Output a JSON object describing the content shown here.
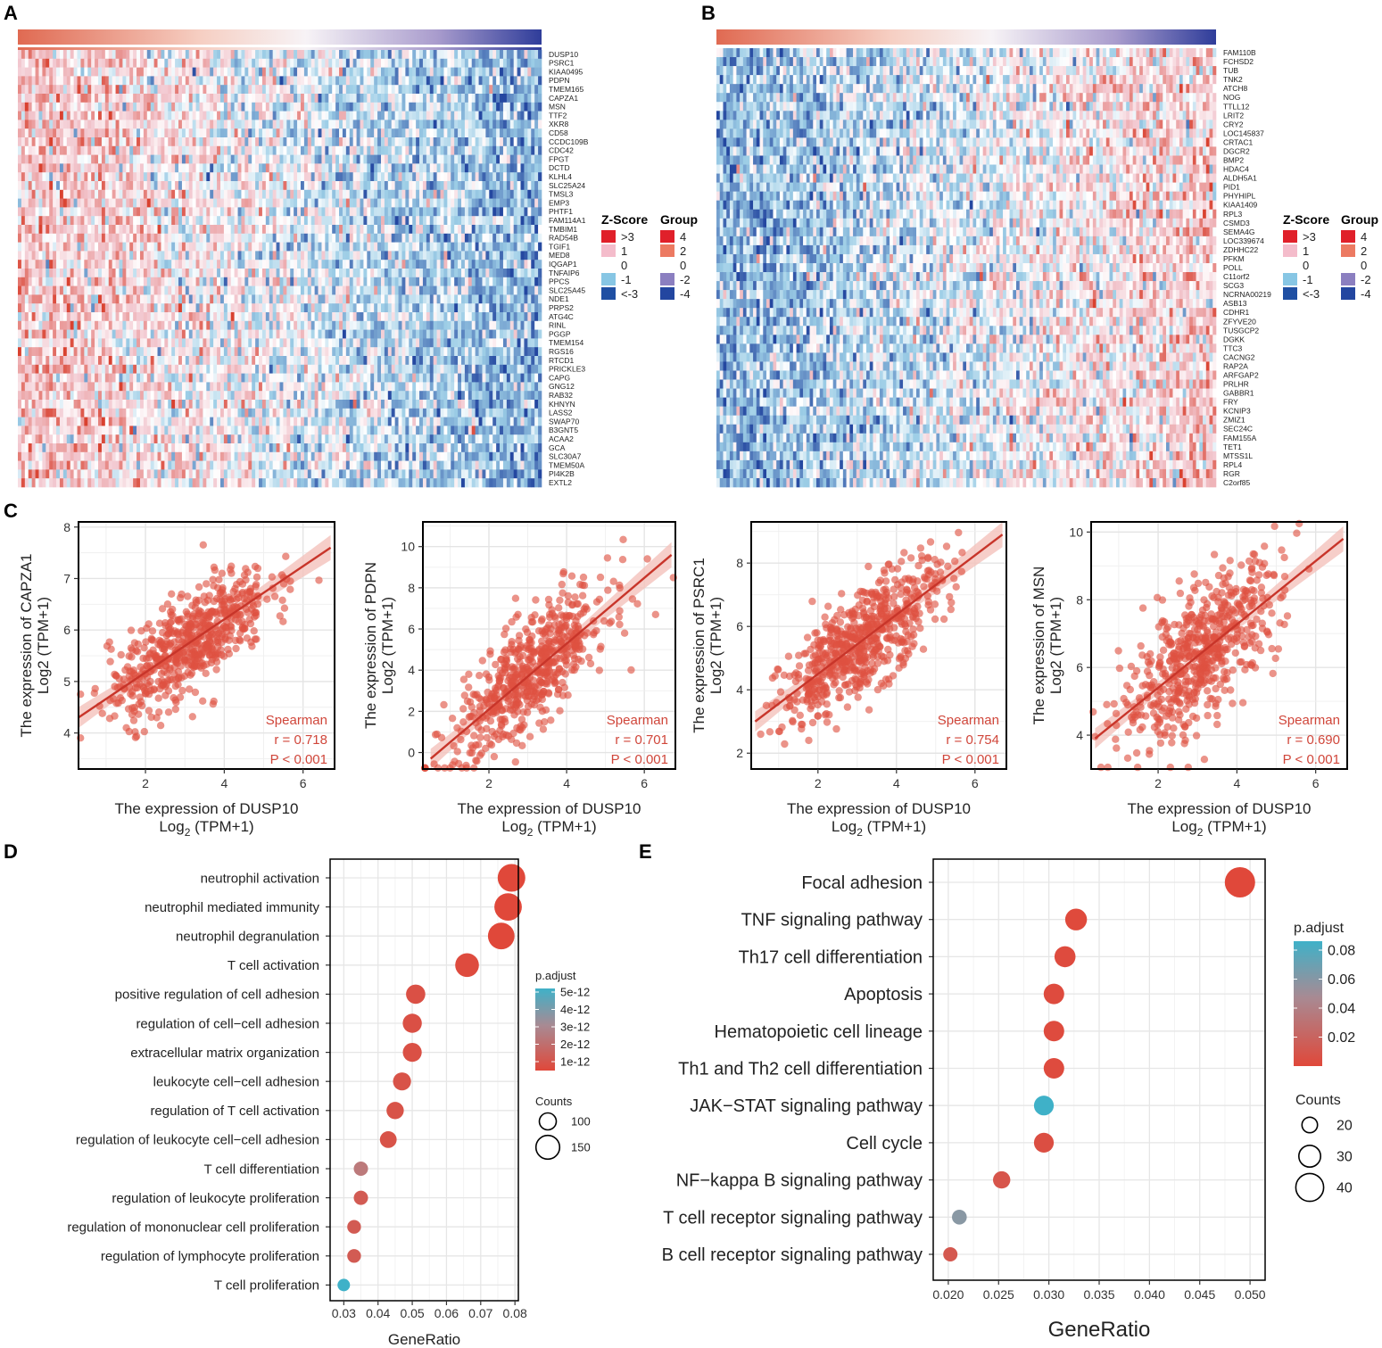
{
  "panels": {
    "A": "A",
    "B": "B",
    "C": "C",
    "D": "D",
    "E": "E"
  },
  "colors": {
    "red": "#d9412f",
    "pink": "#f2c7cf",
    "white": "#ffffff",
    "lightblue": "#86c3e0",
    "darkblue": "#2447a0",
    "point": "#dc4c3a",
    "line": "#c8352a",
    "band": "#f3b9b2",
    "purple": "#8c7fbf",
    "salmon": "#ea7b5e"
  },
  "heatmapA": {
    "genes": [
      "DUSP10",
      "PSRC1",
      "KIAA0495",
      "PDPN",
      "TMEM165",
      "CAPZA1",
      "MSN",
      "TTF2",
      "XKR8",
      "CD58",
      "CCDC109B",
      "CDC42",
      "FPGT",
      "DCTD",
      "KLHL4",
      "SLC25A24",
      "TMSL3",
      "EMP3",
      "PHTF1",
      "FAM114A1",
      "TMBIM1",
      "RAD54B",
      "TGIF1",
      "MED8",
      "IQGAP1",
      "TNFAIP6",
      "PPCS",
      "SLC25A45",
      "NDE1",
      "PRPS2",
      "ATG4C",
      "RINL",
      "PGGP",
      "TMEM154",
      "RGS16",
      "RTCD1",
      "PRICKLE3",
      "CAPG",
      "GNG12",
      "RAB32",
      "KHNYN",
      "LASS2",
      "SWAP70",
      "B3GNT5",
      "ACAA2",
      "GCA",
      "SLC30A7",
      "TMEM50A",
      "PI4K2B",
      "EXTL2"
    ],
    "direction": "red-to-blue"
  },
  "heatmapB": {
    "genes": [
      "FAM110B",
      "FCHSD2",
      "TUB",
      "TNK2",
      "ATCH8",
      "NOG",
      "TTLL12",
      "LRIT2",
      "CRY2",
      "LOC145837",
      "CRTAC1",
      "DGCR2",
      "BMP2",
      "HDAC4",
      "ALDH5A1",
      "PID1",
      "PHYHIPL",
      "KIAA1409",
      "RPL3",
      "CSMD3",
      "SEMA4G",
      "LOC339674",
      "ZDHHC22",
      "PFKM",
      "POLL",
      "C11orf2",
      "SCG3",
      "NCRNA00219",
      "ASB13",
      "CDHR1",
      "ZFYVE20",
      "TUSGCP2",
      "DGKK",
      "TTC3",
      "CACNG2",
      "RAP2A",
      "ARFGAP2",
      "PRLHR",
      "GABBR1",
      "FRY",
      "KCNIP3",
      "ZMIZ1",
      "SEC24C",
      "FAM155A",
      "TET1",
      "MTSS1L",
      "RPL4",
      "RGR",
      "C2orf85"
    ],
    "direction": "blue-to-red"
  },
  "zscore_legend": {
    "title": "Z-Score",
    "items": [
      ">3",
      "1",
      "0",
      "-1",
      "<-3"
    ]
  },
  "group_legend": {
    "title": "Group",
    "items": [
      "4",
      "2",
      "0",
      "-2",
      "-4"
    ]
  },
  "chart_data": [
    {
      "type": "scatter",
      "panel": "C1",
      "xlabel_main": "The expression of DUSP10",
      "xlabel_sub_pre": "Log",
      "xlabel_sub_sub": "2",
      "xlabel_sub_post": " (TPM+1)",
      "ylabel_main": "The expression of CAPZA1",
      "ylabel_sub": "Log2 (TPM+1)",
      "xlim": [
        0.3,
        6.8
      ],
      "ylim": [
        3.3,
        8.1
      ],
      "xticks": [
        2,
        4,
        6
      ],
      "yticks": [
        4,
        5,
        6,
        7,
        8
      ],
      "fit": {
        "x": [
          0.3,
          6.7
        ],
        "y": [
          4.3,
          7.6
        ]
      },
      "stat_method": "Spearman",
      "stat_r": "r = 0.718",
      "stat_p": "P < 0.001",
      "n_points": 600,
      "x_center": 3.1,
      "x_sd": 1.0,
      "noise_sd": 0.48
    },
    {
      "type": "scatter",
      "panel": "C2",
      "xlabel_main": "The expression of DUSP10",
      "xlabel_sub_pre": "Log",
      "xlabel_sub_sub": "2",
      "xlabel_sub_post": " (TPM+1)",
      "ylabel_main": "The expression of PDPN",
      "ylabel_sub": "Log2 (TPM+1)",
      "xlim": [
        0.3,
        6.8
      ],
      "ylim": [
        -0.8,
        11.2
      ],
      "xticks": [
        2,
        4,
        6
      ],
      "yticks": [
        0,
        2,
        4,
        6,
        8,
        10
      ],
      "fit": {
        "x": [
          0.5,
          6.7
        ],
        "y": [
          -0.3,
          9.6
        ]
      },
      "stat_method": "Spearman",
      "stat_r": "r = 0.701",
      "stat_p": "P < 0.001",
      "n_points": 600,
      "x_center": 3.1,
      "x_sd": 1.0,
      "noise_sd": 1.3
    },
    {
      "type": "scatter",
      "panel": "C3",
      "xlabel_main": "The expression of DUSP10",
      "xlabel_sub_pre": "Log",
      "xlabel_sub_sub": "2",
      "xlabel_sub_post": " (TPM+1)",
      "ylabel_main": "The expression of PSRC1",
      "ylabel_sub": "Log2 (TPM+1)",
      "xlim": [
        0.3,
        6.8
      ],
      "ylim": [
        1.5,
        9.3
      ],
      "xticks": [
        2,
        4,
        6
      ],
      "yticks": [
        2,
        4,
        6,
        8
      ],
      "fit": {
        "x": [
          0.4,
          6.7
        ],
        "y": [
          3.0,
          8.9
        ]
      },
      "stat_method": "Spearman",
      "stat_r": "r = 0.754",
      "stat_p": "P < 0.001",
      "n_points": 650,
      "x_center": 3.1,
      "x_sd": 1.0,
      "noise_sd": 0.8
    },
    {
      "type": "scatter",
      "panel": "C4",
      "xlabel_main": "The expression of DUSP10",
      "xlabel_sub_pre": "Log",
      "xlabel_sub_sub": "2",
      "xlabel_sub_post": " (TPM+1)",
      "ylabel_main": "The expression of MSN",
      "ylabel_sub": "Log2 (TPM+1)",
      "xlim": [
        0.3,
        6.8
      ],
      "ylim": [
        3.0,
        10.3
      ],
      "xticks": [
        2,
        4,
        6
      ],
      "yticks": [
        4,
        6,
        8,
        10
      ],
      "fit": {
        "x": [
          0.4,
          6.7
        ],
        "y": [
          3.9,
          9.8
        ]
      },
      "stat_method": "Spearman",
      "stat_r": "r = 0.690",
      "stat_p": "P < 0.001",
      "n_points": 600,
      "x_center": 3.1,
      "x_sd": 1.0,
      "noise_sd": 0.95
    },
    {
      "type": "scatter",
      "panel": "D",
      "title": "",
      "xlabel": "GeneRatio",
      "ylabel": "",
      "terms": [
        "neutrophil activation",
        "neutrophil mediated immunity",
        "neutrophil degranulation",
        "T cell activation",
        "positive regulation of cell adhesion",
        "regulation of cell−cell adhesion",
        "extracellular matrix organization",
        "leukocyte cell−cell adhesion",
        "regulation of T cell activation",
        "regulation of leukocyte cell−cell adhesion",
        "T cell differentiation",
        "regulation of leukocyte proliferation",
        "regulation of mononuclear cell proliferation",
        "regulation of lymphocyte proliferation",
        "T cell proliferation"
      ],
      "gene_ratio": [
        0.079,
        0.078,
        0.076,
        0.066,
        0.051,
        0.05,
        0.05,
        0.047,
        0.045,
        0.043,
        0.035,
        0.035,
        0.033,
        0.033,
        0.03
      ],
      "counts": [
        180,
        178,
        172,
        150,
        117,
        115,
        114,
        107,
        102,
        98,
        80,
        80,
        76,
        76,
        66
      ],
      "p_adjust": [
        2e-13,
        2e-13,
        2e-13,
        3e-13,
        5e-13,
        5e-13,
        5e-13,
        6e-13,
        6e-13,
        6e-13,
        2e-12,
        9e-13,
        9e-13,
        9e-13,
        5e-12
      ],
      "xlim": [
        0.026,
        0.081
      ],
      "xticks": [
        "0.03",
        "0.04",
        "0.05",
        "0.06",
        "0.07",
        "0.08"
      ],
      "colorbar_title": "p.adjust",
      "colorbar_labels": [
        "5e-12",
        "4e-12",
        "3e-12",
        "2e-12",
        "1e-12"
      ],
      "size_title": "Counts",
      "size_labels": [
        "100",
        "150"
      ]
    },
    {
      "type": "scatter",
      "panel": "E",
      "title": "",
      "xlabel": "GeneRatio",
      "ylabel": "",
      "terms": [
        "Focal adhesion",
        "TNF signaling pathway",
        "Th17 cell differentiation",
        "Apoptosis",
        "Hematopoietic cell lineage",
        "Th1 and Th2 cell differentiation",
        "JAK−STAT signaling pathway",
        "Cell cycle",
        "NF−kappa B signaling pathway",
        "T cell receptor signaling pathway",
        "B cell receptor signaling pathway"
      ],
      "gene_ratio": [
        0.049,
        0.0327,
        0.0316,
        0.0305,
        0.0305,
        0.0305,
        0.0295,
        0.0295,
        0.0253,
        0.0211,
        0.0202
      ],
      "counts": [
        44,
        30,
        29,
        28,
        28,
        28,
        27,
        27,
        23,
        19,
        18
      ],
      "p_adjust": [
        0.002,
        0.003,
        0.004,
        0.004,
        0.004,
        0.004,
        0.085,
        0.006,
        0.01,
        0.058,
        0.012
      ],
      "xlim": [
        0.0185,
        0.0515
      ],
      "xticks": [
        "0.020",
        "0.025",
        "0.030",
        "0.035",
        "0.040",
        "0.045",
        "0.050"
      ],
      "colorbar_title": "p.adjust",
      "colorbar_labels": [
        "0.08",
        "0.06",
        "0.04",
        "0.02"
      ],
      "size_title": "Counts",
      "size_labels": [
        "20",
        "30",
        "40"
      ]
    }
  ]
}
